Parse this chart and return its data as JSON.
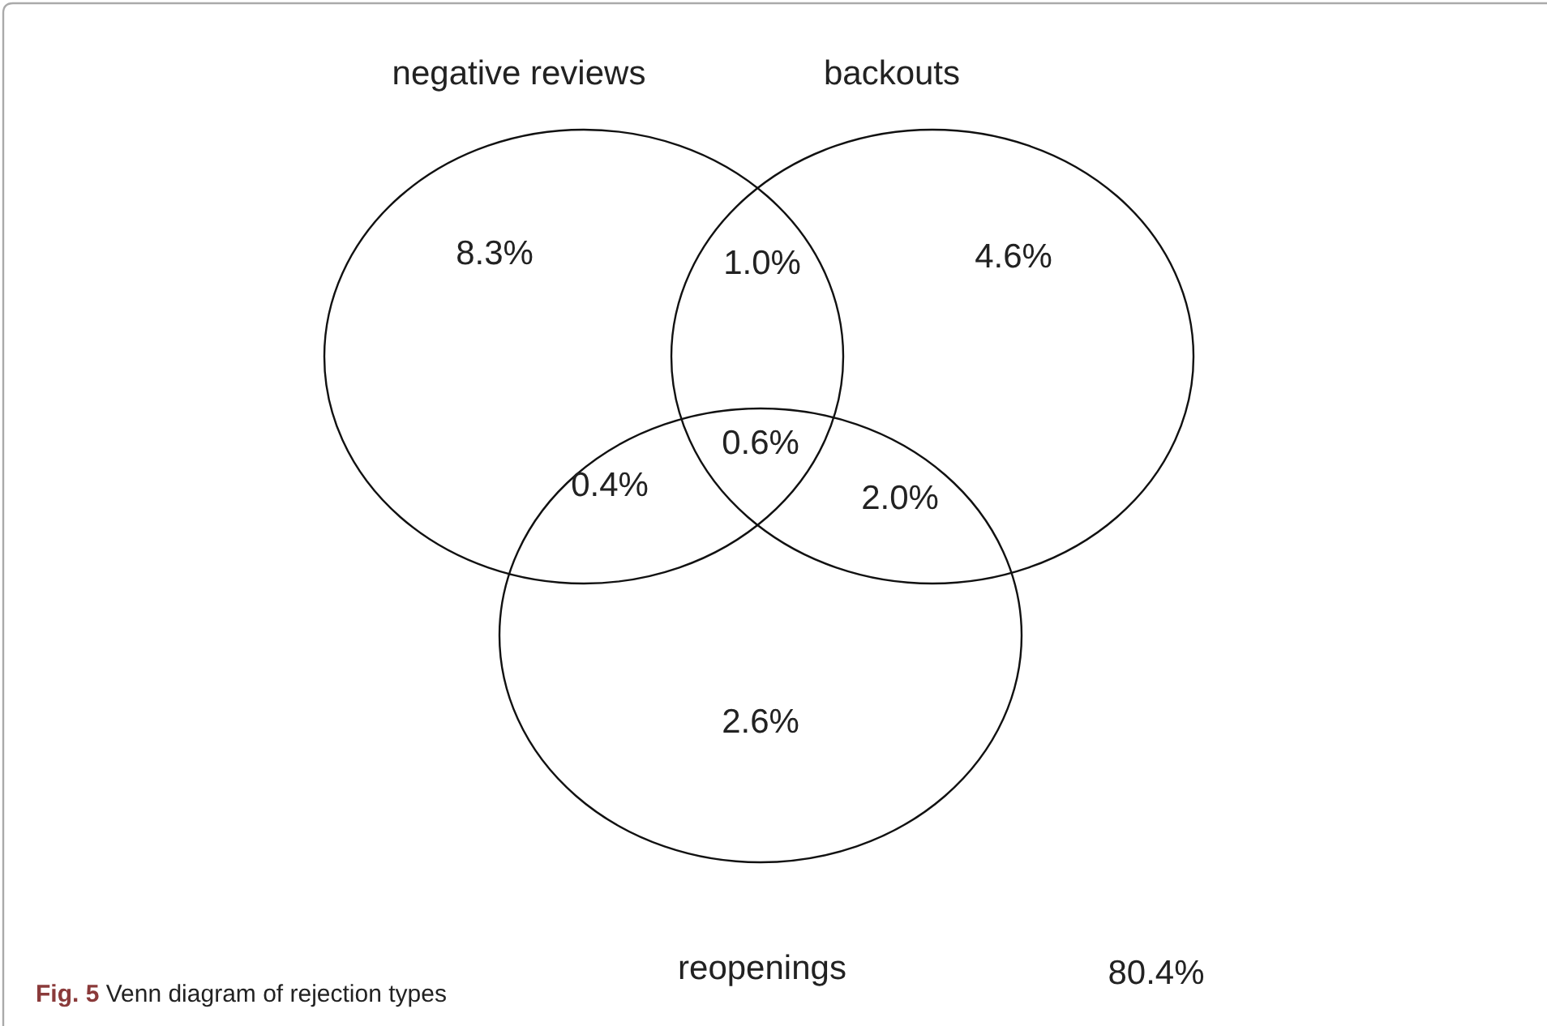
{
  "chart_data": {
    "type": "other",
    "title": "Fig. 5 Venn diagram of rejection types",
    "annotations": [
      "negative reviews",
      "backouts",
      "reopenings"
    ],
    "categories": [
      null,
      null,
      null,
      null,
      null,
      null,
      null,
      null
    ],
    "values": [
      8.3,
      1.0,
      4.6,
      0.6,
      0.4,
      2.0,
      2.6,
      80.4
    ],
    "value_labels": [
      "8.3%",
      "1.0%",
      "4.6%",
      "0.6%",
      "0.4%",
      "2.0%",
      "2.6%",
      "80.4%"
    ]
  }
}
